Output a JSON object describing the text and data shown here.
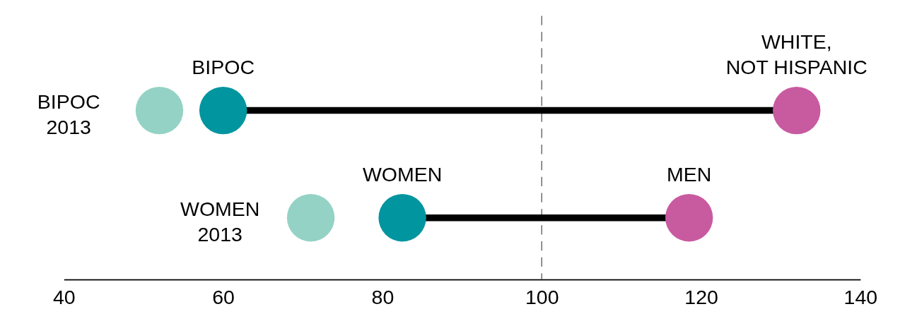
{
  "chart_data": {
    "type": "scatter",
    "orientation": "horizontal",
    "categories": [
      null,
      null
    ],
    "series": [
      {
        "color": "#94d2c5",
        "values": [
          52,
          71
        ]
      },
      {
        "color": "#00959f",
        "values": [
          60,
          82.5
        ]
      },
      {
        "color": "#c85aa0",
        "values": [
          132,
          118.5
        ]
      }
    ],
    "xlim": [
      40,
      140
    ],
    "xticks": [
      40,
      60,
      80,
      100,
      120,
      140
    ],
    "ref_lines": [
      {
        "axis": "x",
        "value": 100,
        "color": "#666666",
        "line_style": "dashed"
      }
    ],
    "annotations": [
      "BIPOC\n2013",
      "BIPOC",
      "WHITE,\nNOT HISPANIC",
      "WOMEN\n2013",
      "WOMEN",
      "MEN"
    ],
    "grid": false
  }
}
